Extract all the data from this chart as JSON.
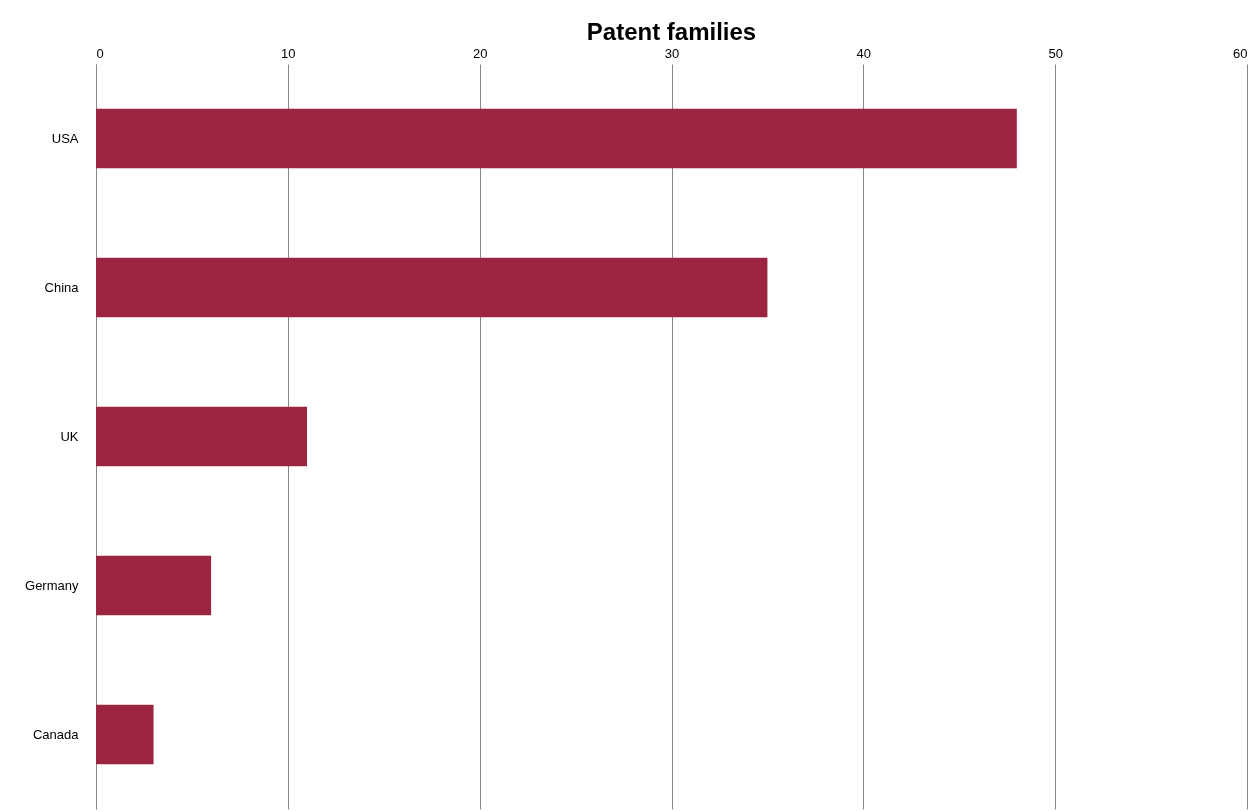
{
  "chart_data": {
    "type": "bar",
    "orientation": "horizontal",
    "title": "Patent families",
    "categories": [
      "USA",
      "China",
      "UK",
      "Germany",
      "Canada"
    ],
    "values": [
      48,
      35,
      11,
      6,
      3
    ],
    "color": "#9b2540",
    "xlim": [
      0,
      60
    ],
    "xticks": [
      0,
      10,
      20,
      30,
      40,
      50,
      60
    ],
    "grid": "x"
  }
}
